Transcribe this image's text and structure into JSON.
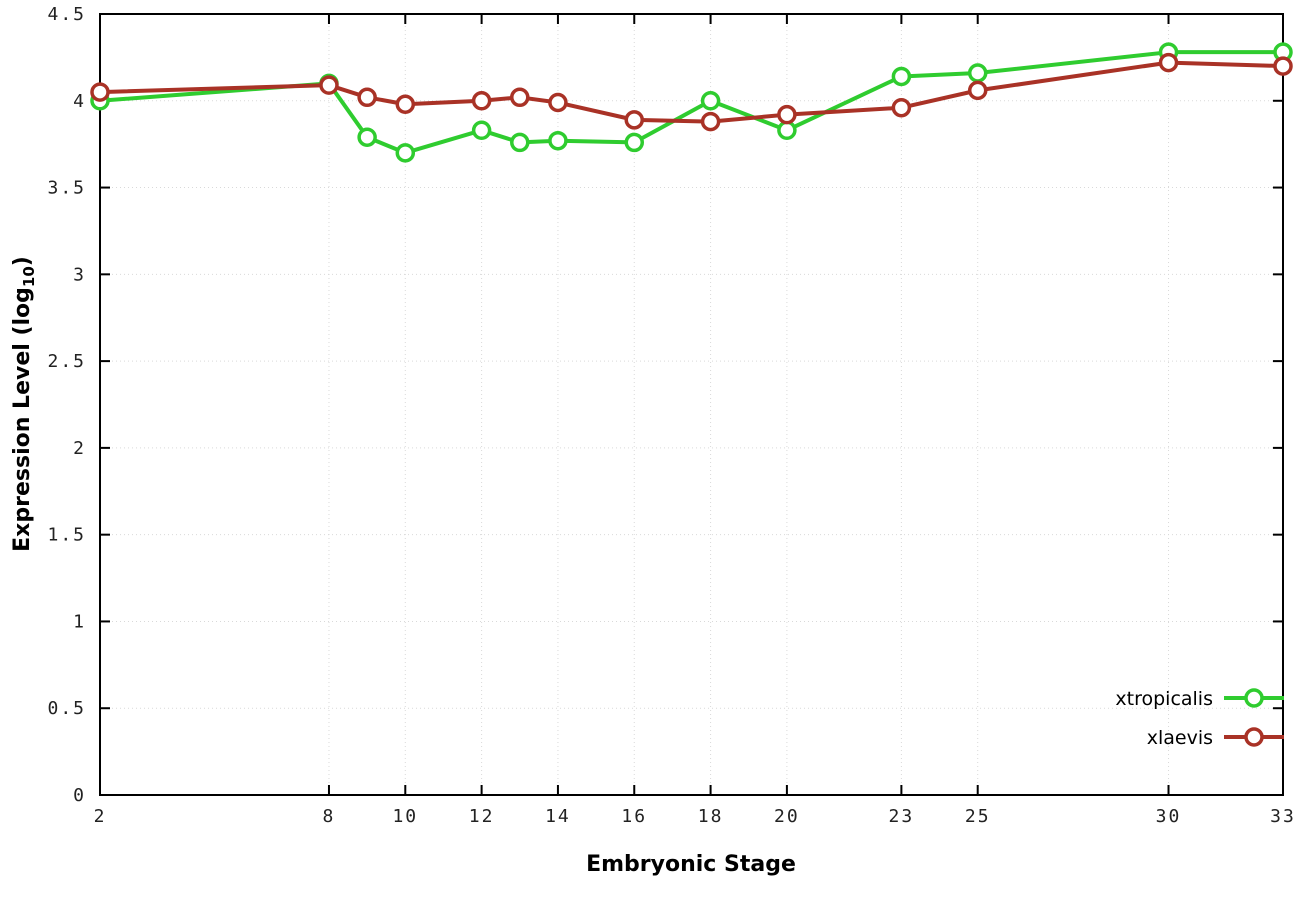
{
  "figure": {
    "background": "#ffffff",
    "xlabel": "Embryonic Stage",
    "ylabel_prefix": "Expression Level (log",
    "ylabel_sub": "10",
    "ylabel_suffix": ")"
  },
  "chart_data": {
    "type": "line",
    "title": "",
    "xlabel": "Embryonic Stage",
    "ylabel": "Expression Level (log10)",
    "xlim": [
      2,
      33
    ],
    "ylim": [
      0,
      4.5
    ],
    "x_ticks": [
      2,
      8,
      10,
      12,
      14,
      16,
      18,
      20,
      23,
      25,
      30,
      33
    ],
    "y_ticks": [
      0,
      0.5,
      1,
      1.5,
      2,
      2.5,
      3,
      3.5,
      4,
      4.5
    ],
    "grid": true,
    "legend_position": "bottom-right",
    "x": [
      2,
      8,
      9,
      10,
      12,
      13,
      14,
      16,
      18,
      20,
      23,
      25,
      30,
      33
    ],
    "series": [
      {
        "name": "xtropicalis",
        "color": "#2fcc2f",
        "values": [
          4.0,
          4.1,
          3.79,
          3.7,
          3.83,
          3.76,
          3.77,
          3.76,
          4.0,
          3.83,
          4.14,
          4.16,
          4.28,
          4.28
        ]
      },
      {
        "name": "xlaevis",
        "color": "#a93226",
        "values": [
          4.05,
          4.09,
          4.02,
          3.98,
          4.0,
          4.02,
          3.99,
          3.89,
          3.88,
          3.92,
          3.96,
          4.06,
          4.22,
          4.2
        ]
      }
    ]
  }
}
